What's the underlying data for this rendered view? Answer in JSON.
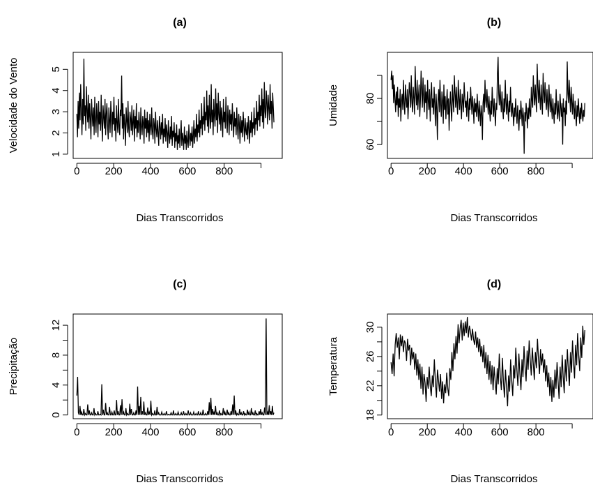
{
  "chart_data": [
    {
      "type": "line",
      "title": "(a)",
      "xlabel": "Dias Transcorridos",
      "ylabel": "Velocidade do Vento",
      "xlim": [
        -20,
        1115
      ],
      "ylim": [
        0.8,
        5.8
      ],
      "xticks": [
        "0",
        "200",
        "400",
        "600",
        "800"
      ],
      "yticks": [
        "1",
        "2",
        "3",
        "4",
        "5"
      ],
      "x_step": 1,
      "series": [
        {
          "values": [
            2.9,
            1.8,
            3.5,
            2.2,
            3.9,
            2.6,
            4.3,
            3.1,
            1.9,
            3.6,
            2.4,
            5.5,
            2.8,
            3.3,
            2.1,
            4.2,
            3.0,
            2.5,
            3.8,
            2.2,
            3.4,
            2.7,
            1.7,
            3.6,
            2.9,
            2.3,
            3.2,
            1.9,
            3.7,
            2.6,
            2.0,
            3.4,
            2.8,
            1.8,
            3.5,
            2.4,
            3.0,
            2.1,
            3.8,
            2.5,
            1.6,
            3.3,
            2.7,
            2.2,
            3.6,
            1.9,
            2.9,
            3.4,
            2.3,
            1.7,
            3.2,
            2.6,
            2.0,
            3.5,
            2.8,
            1.8,
            3.0,
            2.4,
            3.7,
            2.1,
            2.7,
            1.6,
            3.3,
            2.5,
            2.0,
            3.6,
            2.3,
            1.9,
            3.1,
            2.8,
            4.7,
            2.2,
            3.4,
            1.7,
            2.9,
            2.4,
            1.4,
            3.2,
            2.6,
            2.0,
            3.5,
            2.2,
            1.8,
            3.0,
            2.7,
            2.1,
            3.3,
            1.9,
            2.5,
            3.1,
            1.6,
            2.8,
            2.2,
            3.4,
            1.8,
            2.6,
            2.0,
            3.0,
            2.4,
            1.7,
            3.2,
            2.3,
            1.9,
            2.8,
            2.5,
            1.5,
            3.1,
            2.2,
            2.7,
            1.8,
            3.0,
            2.0,
            2.6,
            1.6,
            2.9,
            2.3,
            1.9,
            3.2,
            2.1,
            1.7,
            2.7,
            2.4,
            1.5,
            3.0,
            2.2,
            1.8,
            2.6,
            2.0,
            1.4,
            2.8,
            2.3,
            1.7,
            2.5,
            1.9,
            2.9,
            1.5,
            2.2,
            1.8,
            2.7,
            1.6,
            2.4,
            2.0,
            1.3,
            2.6,
            1.9,
            1.5,
            2.3,
            1.7,
            2.8,
            1.4,
            2.1,
            1.8,
            2.5,
            1.3,
            2.0,
            1.6,
            2.4,
            1.2,
            1.9,
            1.5,
            2.2,
            1.3,
            1.8,
            2.6,
            1.4,
            2.0,
            1.7,
            1.2,
            2.3,
            1.5,
            1.9,
            1.2,
            2.1,
            1.6,
            1.3,
            2.4,
            1.8,
            1.4,
            2.0,
            1.6,
            2.3,
            1.3,
            1.9,
            2.6,
            1.5,
            2.2,
            1.8,
            2.9,
            1.6,
            2.4,
            2.0,
            3.1,
            1.8,
            2.6,
            2.2,
            3.4,
            1.9,
            2.8,
            2.4,
            3.7,
            2.1,
            3.0,
            2.6,
            4.0,
            2.3,
            3.3,
            2.0,
            3.8,
            2.7,
            2.2,
            4.3,
            2.5,
            3.1,
            1.9,
            3.6,
            2.8,
            2.3,
            4.1,
            2.6,
            3.4,
            2.0,
            3.9,
            2.9,
            2.4,
            3.5,
            2.1,
            3.2,
            2.7,
            1.8,
            3.6,
            2.5,
            3.0,
            2.2,
            3.7,
            2.6,
            2.0,
            3.3,
            2.8,
            1.9,
            3.1,
            2.4,
            2.9,
            2.1,
            3.4,
            2.6,
            1.8,
            3.0,
            2.3,
            2.7,
            1.9,
            3.2,
            2.2,
            1.7,
            2.9,
            2.4,
            1.5,
            2.8,
            2.0,
            2.6,
            1.8,
            3.0,
            2.3,
            1.6,
            2.7,
            2.1,
            1.9,
            2.5,
            1.7,
            2.8,
            2.2,
            1.5,
            2.6,
            2.0,
            3.0,
            1.8,
            2.5,
            2.2,
            3.2,
            1.9,
            2.7,
            2.4,
            3.5,
            2.1,
            3.0,
            2.6,
            3.8,
            2.3,
            3.3,
            2.8,
            4.1,
            2.5,
            3.6,
            2.2,
            4.4,
            3.0,
            2.7,
            4.0,
            3.4,
            2.4,
            3.8,
            3.1,
            2.6,
            4.3,
            2.9,
            3.5,
            2.2,
            3.9,
            3.2,
            2.5
          ],
          "color": "#000000"
        }
      ]
    },
    {
      "type": "line",
      "title": "(b)",
      "xlabel": "Dias Transcorridos",
      "ylabel": "Umidade",
      "xlim": [
        -20,
        1115
      ],
      "ylim": [
        54,
        100
      ],
      "xticks": [
        "0",
        "200",
        "400",
        "600",
        "800"
      ],
      "yticks": [
        "60",
        "80"
      ],
      "x_step": 1,
      "series": [
        {
          "values": [
            88,
            92,
            84,
            90,
            78,
            86,
            80,
            74,
            83,
            77,
            85,
            72,
            80,
            76,
            84,
            70,
            79,
            82,
            75,
            88,
            78,
            73,
            86,
            80,
            76,
            84,
            71,
            79,
            87,
            82,
            76,
            90,
            78,
            74,
            85,
            80,
            73,
            94,
            82,
            77,
            88,
            75,
            81,
            86,
            72,
            79,
            92,
            83,
            76,
            89,
            80,
            74,
            86,
            78,
            83,
            71,
            88,
            79,
            75,
            84,
            70,
            81,
            87,
            76,
            80,
            73,
            85,
            78,
            68,
            82,
            76,
            62,
            79,
            84,
            74,
            88,
            77,
            72,
            83,
            79,
            69,
            86,
            75,
            81,
            71,
            78,
            84,
            73,
            80,
            66,
            77,
            83,
            75,
            70,
            86,
            79,
            74,
            90,
            82,
            76,
            85,
            78,
            73,
            88,
            80,
            75,
            84,
            77,
            71,
            82,
            79,
            74,
            87,
            81,
            76,
            79,
            72,
            83,
            77,
            70,
            80,
            75,
            85,
            78,
            73,
            81,
            76,
            69,
            80,
            74,
            78,
            72,
            82,
            76,
            70,
            79,
            74,
            68,
            77,
            73,
            62,
            78,
            82,
            74,
            88,
            79,
            76,
            84,
            78,
            73,
            81,
            75,
            70,
            79,
            73,
            85,
            77,
            72,
            80,
            74,
            68,
            78,
            75,
            90,
            98,
            82,
            77,
            86,
            79,
            74,
            83,
            76,
            71,
            80,
            74,
            88,
            78,
            73,
            82,
            76,
            70,
            79,
            74,
            85,
            77,
            72,
            78,
            73,
            68,
            76,
            72,
            80,
            74,
            69,
            77,
            72,
            66,
            75,
            71,
            79,
            73,
            68,
            76,
            72,
            56,
            74,
            70,
            78,
            73,
            67,
            76,
            71,
            80,
            74,
            72,
            85,
            79,
            76,
            90,
            82,
            77,
            86,
            79,
            74,
            95,
            84,
            78,
            88,
            80,
            75,
            86,
            79,
            73,
            91,
            83,
            78,
            87,
            80,
            75,
            84,
            78,
            72,
            86,
            79,
            74,
            82,
            76,
            71,
            80,
            74,
            69,
            78,
            73,
            84,
            76,
            71,
            79,
            74,
            70,
            82,
            76,
            72,
            78,
            60,
            80,
            74,
            76,
            68,
            79,
            73,
            96,
            82,
            78,
            88,
            80,
            74,
            85,
            78,
            73,
            82,
            76,
            71,
            79,
            73,
            68,
            77,
            72,
            80,
            74,
            69,
            76,
            71,
            78,
            73,
            70,
            75,
            72,
            78
          ],
          "color": "#000000"
        }
      ]
    },
    {
      "type": "line",
      "title": "(c)",
      "xlabel": "Dias Transcorridos",
      "ylabel": "Precipitação",
      "xlim": [
        -20,
        1115
      ],
      "ylim": [
        -0.5,
        13.5
      ],
      "xticks": [
        "0",
        "200",
        "400",
        "600",
        "800"
      ],
      "yticks": [
        "0",
        "4",
        "8",
        "12"
      ],
      "x_step": 1,
      "series": [
        {
          "values": [
            2.6,
            5.1,
            0.3,
            0.0,
            1.2,
            0.0,
            0.4,
            0.0,
            0.0,
            0.8,
            0.0,
            0.2,
            0.0,
            0.0,
            1.4,
            0.0,
            0.6,
            0.0,
            0.0,
            0.3,
            0.0,
            0.0,
            0.9,
            0.0,
            0.2,
            0.0,
            0.0,
            0.5,
            0.0,
            0.0,
            0.1,
            0.0,
            4.1,
            0.0,
            0.7,
            0.0,
            0.0,
            1.6,
            0.0,
            0.3,
            0.0,
            0.0,
            1.1,
            0.0,
            0.0,
            0.4,
            0.0,
            0.0,
            0.6,
            0.0,
            0.0,
            2.0,
            0.0,
            0.5,
            0.0,
            0.0,
            1.3,
            0.0,
            2.1,
            0.0,
            0.4,
            0.0,
            0.0,
            0.9,
            0.0,
            0.2,
            0.0,
            0.0,
            1.5,
            0.0,
            0.8,
            0.0,
            0.0,
            0.3,
            0.0,
            0.0,
            0.6,
            0.0,
            3.8,
            0.0,
            1.2,
            0.0,
            2.4,
            0.0,
            0.5,
            0.0,
            1.8,
            0.0,
            0.3,
            0.0,
            0.0,
            1.0,
            0.0,
            0.4,
            0.0,
            1.9,
            0.0,
            0.2,
            0.0,
            0.0,
            0.6,
            0.0,
            0.0,
            1.1,
            0.0,
            0.3,
            0.0,
            0.0,
            0.0,
            0.4,
            0.0,
            0.0,
            0.2,
            0.0,
            0.0,
            0.5,
            0.0,
            0.0,
            0.1,
            0.0,
            0.0,
            0.3,
            0.0,
            0.0,
            0.6,
            0.0,
            0.0,
            0.2,
            0.0,
            0.0,
            0.4,
            0.0,
            0.0,
            0.0,
            0.3,
            0.0,
            0.0,
            0.5,
            0.0,
            0.0,
            0.2,
            0.0,
            0.0,
            0.6,
            0.0,
            0.0,
            0.3,
            0.0,
            0.0,
            0.0,
            0.4,
            0.0,
            0.0,
            0.2,
            0.0,
            0.0,
            0.5,
            0.0,
            0.0,
            0.3,
            0.0,
            0.0,
            0.7,
            0.0,
            0.0,
            0.2,
            0.0,
            0.0,
            0.5,
            0.0,
            1.7,
            0.0,
            2.3,
            0.0,
            0.8,
            0.0,
            0.4,
            0.0,
            1.2,
            0.0,
            0.3,
            0.0,
            0.0,
            0.6,
            0.0,
            0.2,
            0.0,
            0.0,
            0.9,
            0.0,
            0.4,
            0.0,
            0.0,
            0.7,
            0.0,
            0.3,
            0.0,
            0.0,
            0.5,
            0.0,
            1.4,
            0.0,
            2.6,
            0.0,
            0.6,
            0.0,
            0.2,
            0.0,
            0.0,
            0.8,
            0.0,
            0.3,
            0.0,
            0.0,
            0.5,
            0.0,
            0.2,
            0.0,
            0.0,
            0.7,
            0.0,
            0.4,
            0.0,
            0.0,
            0.9,
            0.0,
            0.3,
            0.0,
            0.0,
            0.6,
            0.0,
            0.2,
            0.0,
            0.0,
            0.5,
            0.0,
            0.8,
            0.0,
            0.3,
            0.0,
            0.0,
            1.0,
            0.0,
            12.9,
            0.0,
            0.4,
            0.0,
            1.3,
            0.0,
            0.5,
            0.0,
            1.2,
            0.0,
            0.3
          ],
          "color": "#000000"
        }
      ]
    },
    {
      "type": "line",
      "title": "(d)",
      "xlabel": "Dias Transcorridos",
      "ylabel": "Temperatura",
      "xlim": [
        -20,
        1115
      ],
      "ylim": [
        17.5,
        31.8
      ],
      "xticks": [
        "0",
        "200",
        "400",
        "600",
        "800"
      ],
      "yticks": [
        "18",
        "22",
        "26",
        "30"
      ],
      "x_step": 1,
      "series": [
        {
          "values": [
            25.2,
            23.6,
            26.4,
            23.3,
            27.6,
            29.2,
            27.2,
            28.6,
            25.6,
            29.0,
            27.4,
            28.8,
            26.6,
            28.2,
            27.8,
            25.4,
            28.4,
            26.8,
            27.6,
            24.8,
            27.2,
            25.6,
            26.6,
            24.2,
            26.4,
            23.4,
            25.6,
            22.8,
            25.0,
            21.6,
            24.6,
            20.8,
            23.6,
            22.4,
            19.8,
            23.2,
            21.6,
            24.6,
            22.0,
            20.6,
            23.4,
            21.8,
            25.6,
            22.6,
            20.4,
            24.2,
            22.8,
            21.2,
            23.6,
            20.2,
            22.6,
            19.6,
            22.2,
            21.0,
            23.8,
            21.6,
            20.6,
            24.4,
            22.8,
            26.6,
            24.0,
            27.8,
            25.6,
            28.8,
            26.4,
            30.4,
            27.8,
            29.8,
            31.0,
            28.2,
            30.6,
            28.8,
            30.8,
            29.2,
            31.4,
            28.6,
            30.2,
            29.4,
            28.2,
            29.8,
            28.4,
            27.6,
            29.4,
            27.2,
            28.6,
            26.6,
            28.4,
            26.0,
            27.4,
            25.2,
            27.6,
            24.4,
            26.6,
            23.6,
            26.2,
            22.8,
            25.4,
            22.2,
            24.8,
            21.4,
            24.6,
            22.6,
            20.8,
            24.4,
            22.2,
            26.4,
            23.2,
            21.4,
            25.8,
            22.6,
            20.4,
            24.2,
            21.8,
            19.2,
            23.4,
            21.2,
            25.6,
            22.8,
            20.6,
            24.8,
            23.0,
            27.2,
            24.2,
            22.0,
            26.4,
            23.6,
            21.4,
            25.6,
            23.2,
            27.4,
            24.6,
            22.6,
            26.8,
            24.2,
            28.2,
            25.6,
            23.4,
            27.2,
            25.0,
            22.8,
            26.6,
            24.4,
            28.4,
            25.8,
            23.6,
            27.0,
            24.8,
            26.4,
            23.8,
            25.6,
            22.6,
            24.8,
            21.8,
            23.8,
            20.6,
            23.2,
            19.8,
            22.8,
            20.4,
            24.2,
            21.6,
            25.2,
            22.8,
            20.2,
            24.6,
            21.8,
            26.2,
            23.2,
            21.0,
            25.6,
            22.6,
            27.0,
            24.2,
            22.0,
            26.6,
            23.8,
            28.2,
            25.4,
            23.0,
            27.6,
            24.8,
            29.2,
            26.2,
            24.0,
            28.6,
            25.8,
            30.2,
            27.6,
            29.6
          ],
          "color": "#000000"
        }
      ]
    }
  ]
}
